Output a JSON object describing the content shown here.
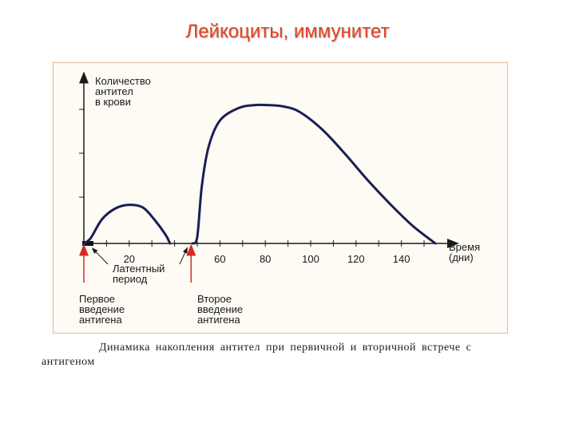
{
  "page": {
    "title": "Лейкоциты, иммунитет",
    "caption_line1": "Динамика накопления антител при первичной и вторичной встрече с",
    "caption_line2": "антигеном"
  },
  "chart_data": {
    "type": "line",
    "title": "",
    "ylabel": [
      "Количество",
      "антител",
      "в крови"
    ],
    "xlabel": [
      "Время",
      "(дни)"
    ],
    "x_ticks": [
      20,
      60,
      80,
      100,
      120,
      140
    ],
    "xlim": [
      0,
      160
    ],
    "ylim": [
      0,
      4
    ],
    "grid": false,
    "series": [
      {
        "x": [
          0,
          3,
          8,
          14,
          20,
          26,
          31,
          36,
          38
        ],
        "y": [
          0,
          0.12,
          0.55,
          0.8,
          0.88,
          0.82,
          0.55,
          0.2,
          0
        ]
      },
      {
        "x": [
          48,
          50,
          52,
          55,
          60,
          68,
          75,
          82,
          88,
          95,
          105,
          115,
          125,
          135,
          145,
          155
        ],
        "y": [
          0,
          0.15,
          1.3,
          2.2,
          2.8,
          3.08,
          3.15,
          3.15,
          3.12,
          3.0,
          2.6,
          2.05,
          1.45,
          0.9,
          0.4,
          0
        ]
      }
    ],
    "annotations": {
      "first_injection": {
        "x": 0,
        "label": [
          "Первое",
          "введение",
          "антигена"
        ]
      },
      "latent_period": {
        "x": 3,
        "label": [
          "Латентный",
          "период"
        ]
      },
      "second_injection": {
        "x": 48,
        "label": [
          "Второе",
          "введение",
          "антигена"
        ]
      }
    },
    "colors": {
      "curve": "#1a1e56",
      "axis": "#1a1a1a",
      "injection_arrow": "#d62b1f",
      "latent_bar": "#111111"
    }
  }
}
